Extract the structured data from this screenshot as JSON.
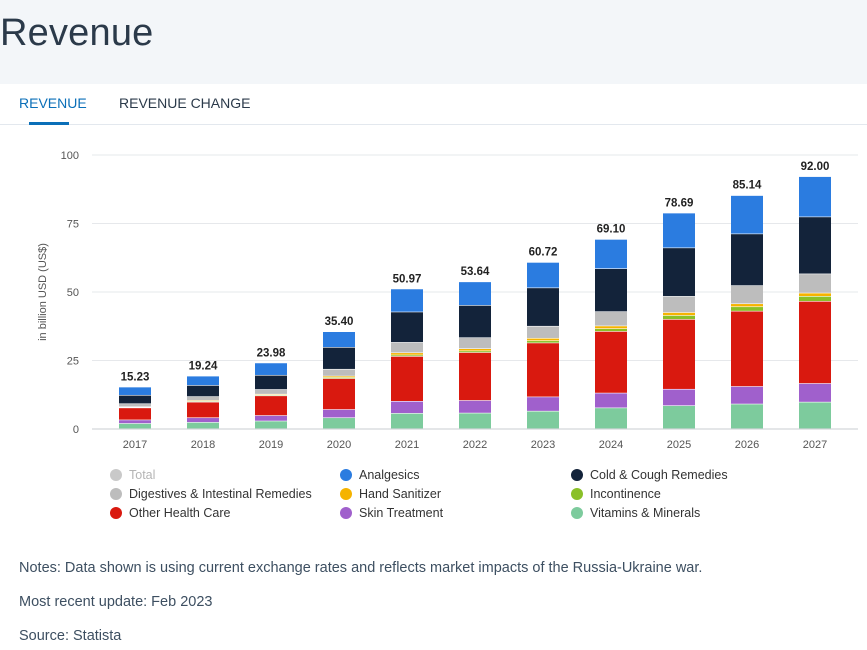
{
  "page": {
    "title": "Revenue"
  },
  "tabs": [
    {
      "label": "REVENUE",
      "active": true
    },
    {
      "label": "REVENUE CHANGE",
      "active": false
    }
  ],
  "notes": {
    "note": "Notes: Data shown is using current exchange rates and reflects market impacts of the Russia-Ukraine war.",
    "update": "Most recent update: Feb 2023",
    "source": "Source: Statista"
  },
  "chart_data": {
    "type": "bar",
    "stacked": true,
    "title": "",
    "xlabel": "",
    "ylabel": "in billion USD (US$)",
    "ylim": [
      0,
      100
    ],
    "yticks": [
      0,
      25,
      50,
      75,
      100
    ],
    "grid": true,
    "legend_position": "bottom",
    "categories": [
      "2017",
      "2018",
      "2019",
      "2020",
      "2021",
      "2022",
      "2023",
      "2024",
      "2025",
      "2026",
      "2027"
    ],
    "totals": [
      15.23,
      19.24,
      23.98,
      35.4,
      50.97,
      53.64,
      60.72,
      69.1,
      78.69,
      85.14,
      92.0
    ],
    "total_labels": [
      "15.23",
      "19.24",
      "23.98",
      "35.40",
      "50.97",
      "53.64",
      "60.72",
      "69.10",
      "78.69",
      "85.14",
      "92.00"
    ],
    "series": [
      {
        "name": "Vitamins & Minerals",
        "color": "#7dcb9d",
        "values": [
          1.9,
          2.3,
          2.8,
          4.0,
          5.6,
          5.7,
          6.4,
          7.6,
          8.4,
          9.0,
          9.7
        ]
      },
      {
        "name": "Skin Treatment",
        "color": "#a060cc",
        "values": [
          1.3,
          1.7,
          2.0,
          3.0,
          4.4,
          4.6,
          5.2,
          5.4,
          6.0,
          6.4,
          6.8
        ]
      },
      {
        "name": "Other Health Care",
        "color": "#d9190f",
        "values": [
          4.4,
          5.7,
          7.2,
          11.3,
          16.4,
          17.5,
          19.7,
          22.5,
          25.5,
          27.5,
          30.0
        ]
      },
      {
        "name": "Incontinence",
        "color": "#8ac028",
        "values": [
          0.2,
          0.3,
          0.3,
          0.4,
          0.5,
          0.6,
          0.8,
          1.0,
          1.4,
          1.6,
          1.8
        ]
      },
      {
        "name": "Hand Sanitizer",
        "color": "#f5b300",
        "values": [
          0.2,
          0.3,
          0.3,
          0.5,
          0.8,
          0.8,
          0.9,
          1.0,
          1.1,
          1.1,
          1.2
        ]
      },
      {
        "name": "Digestives & Intestinal Remedies",
        "color": "#bdbdbd",
        "values": [
          1.1,
          1.4,
          1.7,
          2.5,
          3.8,
          4.0,
          4.4,
          5.2,
          5.9,
          6.6,
          7.0
        ]
      },
      {
        "name": "Cold & Cough Remedies",
        "color": "#13233a",
        "values": [
          3.1,
          4.1,
          5.2,
          8.0,
          11.1,
          11.8,
          14.0,
          15.7,
          17.7,
          18.9,
          20.8
        ]
      },
      {
        "name": "Analgesics",
        "color": "#2b7ce0",
        "values": [
          3.0,
          3.4,
          4.5,
          5.7,
          8.4,
          8.6,
          9.3,
          10.7,
          12.7,
          14.0,
          14.7
        ]
      }
    ],
    "legend": [
      {
        "name": "Total",
        "color": "#c9c9c9",
        "muted": true
      },
      {
        "name": "Analgesics",
        "color": "#2b7ce0"
      },
      {
        "name": "Cold & Cough Remedies",
        "color": "#13233a"
      },
      {
        "name": "Digestives & Intestinal Remedies",
        "color": "#bdbdbd"
      },
      {
        "name": "Hand Sanitizer",
        "color": "#f5b300"
      },
      {
        "name": "Incontinence",
        "color": "#8ac028"
      },
      {
        "name": "Other Health Care",
        "color": "#d9190f"
      },
      {
        "name": "Skin Treatment",
        "color": "#a060cc"
      },
      {
        "name": "Vitamins & Minerals",
        "color": "#7dcb9d"
      }
    ]
  }
}
